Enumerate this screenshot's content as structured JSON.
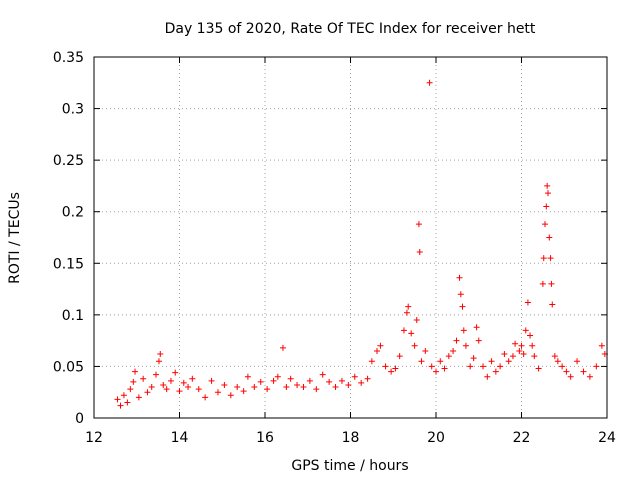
{
  "chart_data": {
    "type": "scatter",
    "title": "Day 135 of 2020, Rate Of TEC Index for receiver hett",
    "xlabel": "GPS time / hours",
    "ylabel": "ROTI / TECUs",
    "xlim": [
      12,
      24
    ],
    "ylim": [
      0,
      0.35
    ],
    "xticks": [
      12,
      14,
      16,
      18,
      20,
      22,
      24
    ],
    "xtick_labels": [
      "12",
      "14",
      "16",
      "18",
      "20",
      "22",
      "24"
    ],
    "yticks": [
      0,
      0.05,
      0.1,
      0.15,
      0.2,
      0.25,
      0.3,
      0.35
    ],
    "ytick_labels": [
      "0",
      "0.05",
      "0.1",
      "0.15",
      "0.2",
      "0.25",
      "0.3",
      "0.35"
    ],
    "grid": true,
    "marker": "+",
    "color": "#ff0000",
    "series": [
      {
        "name": "ROTI",
        "points": [
          [
            12.55,
            0.018
          ],
          [
            12.62,
            0.012
          ],
          [
            12.7,
            0.022
          ],
          [
            12.78,
            0.015
          ],
          [
            12.85,
            0.028
          ],
          [
            12.92,
            0.035
          ],
          [
            12.96,
            0.045
          ],
          [
            13.05,
            0.02
          ],
          [
            13.15,
            0.038
          ],
          [
            13.25,
            0.025
          ],
          [
            13.35,
            0.03
          ],
          [
            13.45,
            0.042
          ],
          [
            13.52,
            0.055
          ],
          [
            13.55,
            0.062
          ],
          [
            13.62,
            0.032
          ],
          [
            13.7,
            0.028
          ],
          [
            13.8,
            0.036
          ],
          [
            13.9,
            0.044
          ],
          [
            14.0,
            0.026
          ],
          [
            14.1,
            0.034
          ],
          [
            14.2,
            0.03
          ],
          [
            14.3,
            0.038
          ],
          [
            14.45,
            0.028
          ],
          [
            14.6,
            0.02
          ],
          [
            14.75,
            0.036
          ],
          [
            14.9,
            0.025
          ],
          [
            15.05,
            0.032
          ],
          [
            15.2,
            0.022
          ],
          [
            15.35,
            0.03
          ],
          [
            15.5,
            0.026
          ],
          [
            15.6,
            0.04
          ],
          [
            15.75,
            0.03
          ],
          [
            15.9,
            0.035
          ],
          [
            16.05,
            0.028
          ],
          [
            16.2,
            0.036
          ],
          [
            16.3,
            0.04
          ],
          [
            16.42,
            0.068
          ],
          [
            16.5,
            0.03
          ],
          [
            16.6,
            0.038
          ],
          [
            16.75,
            0.032
          ],
          [
            16.9,
            0.03
          ],
          [
            17.05,
            0.036
          ],
          [
            17.2,
            0.028
          ],
          [
            17.35,
            0.042
          ],
          [
            17.5,
            0.035
          ],
          [
            17.65,
            0.03
          ],
          [
            17.8,
            0.036
          ],
          [
            17.95,
            0.032
          ],
          [
            18.1,
            0.04
          ],
          [
            18.25,
            0.034
          ],
          [
            18.4,
            0.038
          ],
          [
            18.5,
            0.055
          ],
          [
            18.62,
            0.065
          ],
          [
            18.7,
            0.07
          ],
          [
            18.82,
            0.05
          ],
          [
            18.95,
            0.045
          ],
          [
            19.05,
            0.048
          ],
          [
            19.15,
            0.06
          ],
          [
            19.25,
            0.085
          ],
          [
            19.32,
            0.102
          ],
          [
            19.35,
            0.108
          ],
          [
            19.42,
            0.082
          ],
          [
            19.5,
            0.07
          ],
          [
            19.55,
            0.095
          ],
          [
            19.6,
            0.188
          ],
          [
            19.62,
            0.161
          ],
          [
            19.66,
            0.055
          ],
          [
            19.75,
            0.065
          ],
          [
            19.85,
            0.325
          ],
          [
            19.9,
            0.05
          ],
          [
            20.0,
            0.045
          ],
          [
            20.1,
            0.055
          ],
          [
            20.2,
            0.048
          ],
          [
            20.3,
            0.06
          ],
          [
            20.4,
            0.065
          ],
          [
            20.48,
            0.075
          ],
          [
            20.55,
            0.136
          ],
          [
            20.58,
            0.12
          ],
          [
            20.62,
            0.108
          ],
          [
            20.65,
            0.085
          ],
          [
            20.7,
            0.07
          ],
          [
            20.8,
            0.05
          ],
          [
            20.88,
            0.058
          ],
          [
            20.95,
            0.088
          ],
          [
            21.0,
            0.075
          ],
          [
            21.1,
            0.05
          ],
          [
            21.2,
            0.04
          ],
          [
            21.3,
            0.055
          ],
          [
            21.4,
            0.045
          ],
          [
            21.5,
            0.05
          ],
          [
            21.6,
            0.062
          ],
          [
            21.7,
            0.055
          ],
          [
            21.8,
            0.06
          ],
          [
            21.85,
            0.072
          ],
          [
            21.95,
            0.065
          ],
          [
            22.0,
            0.07
          ],
          [
            22.05,
            0.062
          ],
          [
            22.1,
            0.085
          ],
          [
            22.15,
            0.112
          ],
          [
            22.2,
            0.08
          ],
          [
            22.25,
            0.07
          ],
          [
            22.3,
            0.06
          ],
          [
            22.4,
            0.048
          ],
          [
            22.5,
            0.13
          ],
          [
            22.52,
            0.155
          ],
          [
            22.55,
            0.188
          ],
          [
            22.58,
            0.205
          ],
          [
            22.6,
            0.225
          ],
          [
            22.62,
            0.218
          ],
          [
            22.65,
            0.175
          ],
          [
            22.68,
            0.155
          ],
          [
            22.7,
            0.13
          ],
          [
            22.72,
            0.11
          ],
          [
            22.78,
            0.06
          ],
          [
            22.85,
            0.055
          ],
          [
            22.95,
            0.05
          ],
          [
            23.05,
            0.045
          ],
          [
            23.15,
            0.04
          ],
          [
            23.3,
            0.055
          ],
          [
            23.45,
            0.045
          ],
          [
            23.6,
            0.04
          ],
          [
            23.75,
            0.05
          ],
          [
            23.88,
            0.07
          ],
          [
            23.95,
            0.062
          ]
        ]
      }
    ]
  }
}
